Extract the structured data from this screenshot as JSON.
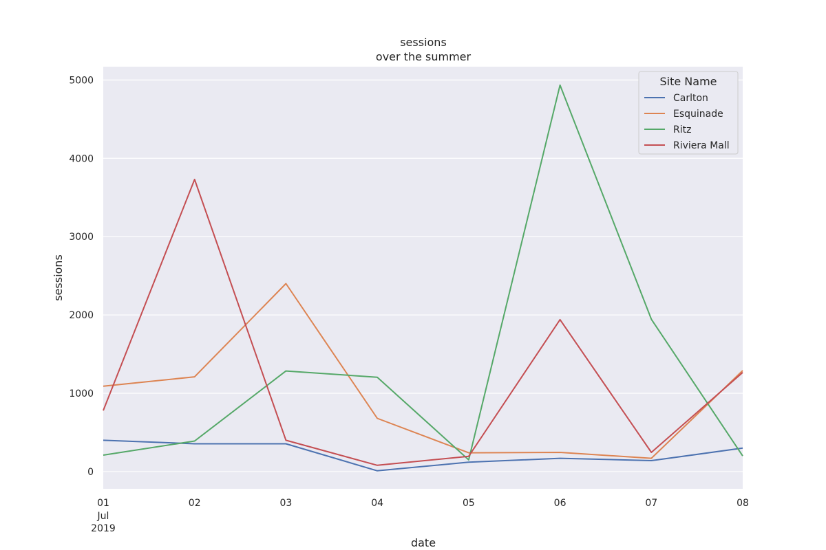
{
  "chart_data": {
    "type": "line",
    "title": "sessions",
    "subtitle": "over the summer",
    "xlabel": "date",
    "ylabel": "sessions",
    "x": [
      "2019-07-01",
      "2019-07-02",
      "2019-07-03",
      "2019-07-04",
      "2019-07-05",
      "2019-07-06",
      "2019-07-07",
      "2019-07-08"
    ],
    "x_tick_labels": [
      "01",
      "02",
      "03",
      "04",
      "05",
      "06",
      "07",
      "08"
    ],
    "x_tick_sublabels": [
      "Jul",
      "2019"
    ],
    "ylim": [
      -220,
      5170
    ],
    "y_ticks": [
      0,
      1000,
      2000,
      3000,
      4000,
      5000
    ],
    "grid": true,
    "legend": {
      "title": "Site Name",
      "placement": "top-right"
    },
    "series": [
      {
        "name": "Carlton",
        "color": "#4c72b0",
        "values": [
          400,
          355,
          355,
          10,
          120,
          170,
          140,
          300
        ]
      },
      {
        "name": "Esquinade",
        "color": "#dd8452",
        "values": [
          1090,
          1210,
          2400,
          680,
          240,
          245,
          170,
          1290
        ]
      },
      {
        "name": "Ritz",
        "color": "#55a868",
        "values": [
          210,
          390,
          1285,
          1205,
          150,
          4935,
          1945,
          200
        ]
      },
      {
        "name": "Riviera Mall",
        "color": "#c44e52",
        "values": [
          780,
          3730,
          400,
          80,
          195,
          1940,
          245,
          1265
        ]
      }
    ]
  }
}
